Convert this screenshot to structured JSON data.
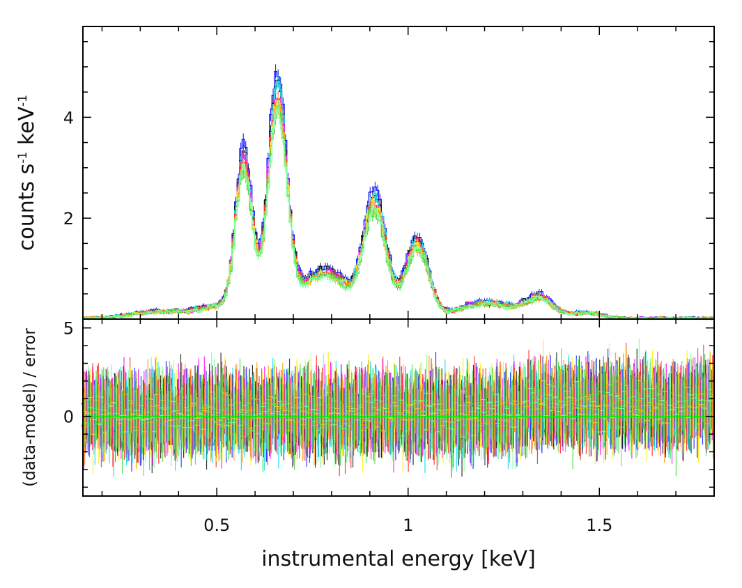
{
  "chart_data": [
    {
      "panel": "top",
      "type": "line",
      "ylabel_main": "counts  s",
      "ylabel_sup1": "-1",
      "ylabel_mid": " keV",
      "ylabel_sup2": "-1",
      "xlim": [
        0.15,
        1.8
      ],
      "ylim": [
        0.0,
        5.8
      ],
      "yticks": [
        {
          "v": 2,
          "label": "2"
        },
        {
          "v": 4,
          "label": "4"
        }
      ],
      "peaks": [
        {
          "e": 0.35,
          "a": 0.13,
          "w": 0.07
        },
        {
          "e": 0.5,
          "a": 0.22,
          "w": 0.05
        },
        {
          "e": 0.568,
          "a": 3.0,
          "w": 0.022
        },
        {
          "e": 0.655,
          "a": 4.3,
          "w": 0.025
        },
        {
          "e": 0.73,
          "a": 0.45,
          "w": 0.04
        },
        {
          "e": 0.8,
          "a": 0.75,
          "w": 0.045
        },
        {
          "e": 0.91,
          "a": 2.25,
          "w": 0.03
        },
        {
          "e": 1.02,
          "a": 1.45,
          "w": 0.03
        },
        {
          "e": 1.2,
          "a": 0.3,
          "w": 0.07
        },
        {
          "e": 1.34,
          "a": 0.38,
          "w": 0.035
        },
        {
          "e": 1.46,
          "a": 0.1,
          "w": 0.04
        }
      ],
      "series": [
        {
          "color": "#1010ff",
          "scale": 1.12,
          "seed": 3
        },
        {
          "color": "#111111",
          "scale": 1.07,
          "seed": 11
        },
        {
          "color": "#00ddee",
          "scale": 1.05,
          "seed": 17
        },
        {
          "color": "#ff00ff",
          "scale": 1.02,
          "seed": 23
        },
        {
          "color": "#ff2222",
          "scale": 1.0,
          "seed": 29
        },
        {
          "color": "#ffee00",
          "scale": 0.98,
          "seed": 31
        },
        {
          "color": "#ff9900",
          "scale": 0.96,
          "seed": 37
        },
        {
          "color": "#33dd33",
          "scale": 0.94,
          "seed": 41
        },
        {
          "color": "#77ff99",
          "scale": 0.95,
          "seed": 47
        }
      ]
    },
    {
      "panel": "bottom",
      "type": "scatter",
      "xlabel": "instrumental energy [keV]",
      "ylabel": "(data-model) / error",
      "xlim": [
        0.15,
        1.8
      ],
      "ylim": [
        -4.5,
        5.5
      ],
      "xticks": [
        {
          "v": 0.5,
          "label": "0.5"
        },
        {
          "v": 1.0,
          "label": "1"
        },
        {
          "v": 1.5,
          "label": "1.5"
        }
      ],
      "yticks": [
        {
          "v": 0,
          "label": "0"
        },
        {
          "v": 5,
          "label": "5"
        }
      ],
      "residual_spread": 1.6
    }
  ]
}
